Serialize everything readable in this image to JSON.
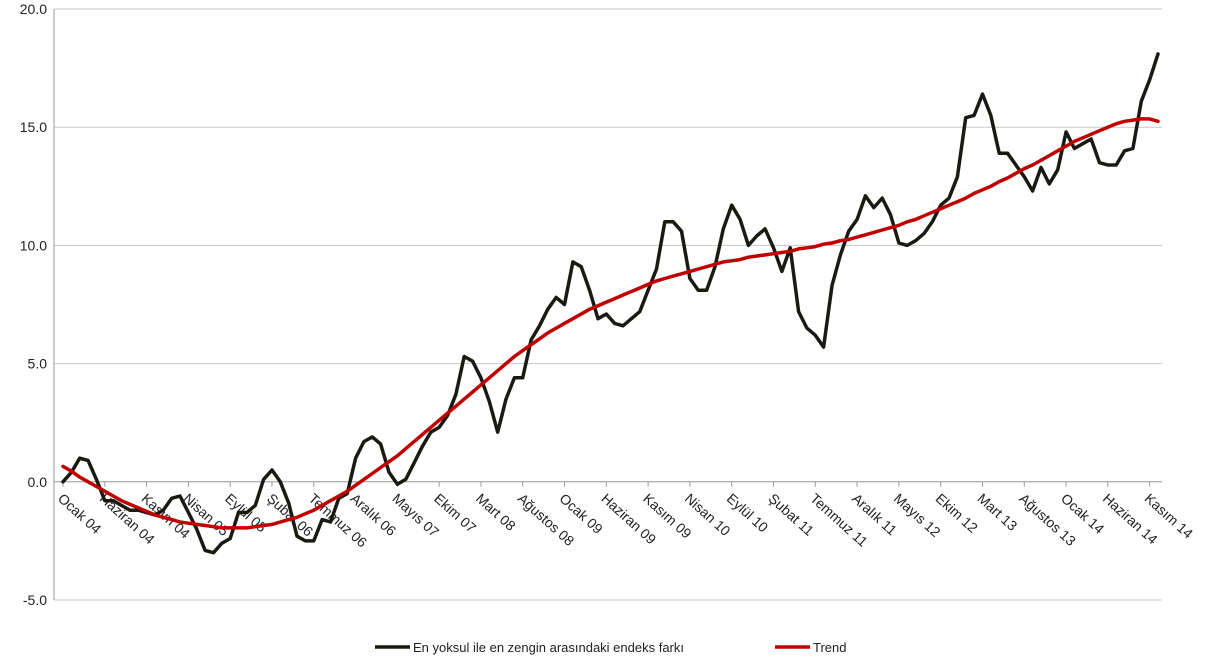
{
  "chart_data": {
    "type": "line",
    "title": "",
    "xlabel": "",
    "ylabel": "",
    "ylim": [
      -5,
      20
    ],
    "yticks": [
      "-5.0",
      "0.0",
      "5.0",
      "10.0",
      "15.0",
      "20.0"
    ],
    "yticks_values": [
      -5,
      0,
      5,
      10,
      15,
      20
    ],
    "grid": "horizontal",
    "legend_position": "bottom-center",
    "x_tick_labels": [
      "Ocak 04",
      "Haziran 04",
      "Kasım 04",
      "Nisan 05",
      "Eylül 05",
      "Şubat 06",
      "Temmuz 06",
      "Aralık 06",
      "Mayıs 07",
      "Ekim 07",
      "Mart 08",
      "Ağustos 08",
      "Ocak 09",
      "Haziran 09",
      "Kasım 09",
      "Nisan 10",
      "Eylül 10",
      "Şubat 11",
      "Temmuz 11",
      "Aralık 11",
      "Mayıs 12",
      "Ekim 12",
      "Mart 13",
      "Ağustos 13",
      "Ocak 14",
      "Haziran 14",
      "Kasım 14"
    ],
    "x_tick_index_step": 5,
    "series": [
      {
        "name": "En yoksul ile en zengin arasındaki endeks farkı",
        "color": "#1a1a12",
        "values": [
          0.0,
          0.4,
          1.0,
          0.9,
          0.1,
          -0.8,
          -0.8,
          -1.0,
          -1.2,
          -1.2,
          -1.3,
          -1.4,
          -1.2,
          -0.7,
          -0.6,
          -1.3,
          -2.0,
          -2.9,
          -3.0,
          -2.6,
          -2.4,
          -1.3,
          -1.3,
          -1.0,
          0.1,
          0.5,
          0.0,
          -0.9,
          -2.3,
          -2.5,
          -2.5,
          -1.6,
          -1.7,
          -0.7,
          -0.5,
          1.0,
          1.7,
          1.9,
          1.6,
          0.4,
          -0.1,
          0.1,
          0.8,
          1.5,
          2.1,
          2.3,
          2.8,
          3.7,
          5.3,
          5.1,
          4.4,
          3.4,
          2.1,
          3.5,
          4.4,
          4.4,
          6.0,
          6.6,
          7.3,
          7.8,
          7.5,
          9.3,
          9.1,
          8.1,
          6.9,
          7.1,
          6.7,
          6.6,
          6.9,
          7.2,
          8.1,
          9.0,
          11.0,
          11.0,
          10.6,
          8.6,
          8.1,
          8.1,
          9.1,
          10.7,
          11.7,
          11.1,
          10.0,
          10.4,
          10.7,
          9.9,
          8.9,
          9.9,
          7.2,
          6.5,
          6.2,
          5.7,
          8.3,
          9.6,
          10.6,
          11.1,
          12.1,
          11.6,
          12.0,
          11.3,
          10.1,
          10.0,
          10.2,
          10.5,
          11.0,
          11.7,
          12.0,
          12.9,
          15.4,
          15.5,
          16.4,
          15.5,
          13.9,
          13.9,
          13.4,
          12.9,
          12.3,
          13.3,
          12.6,
          13.2,
          14.8,
          14.1,
          14.3,
          14.5,
          13.5,
          13.4,
          13.4,
          14.0,
          14.1,
          16.1,
          17.0,
          18.1
        ]
      },
      {
        "name": "Trend",
        "color": "#c00000",
        "values": [
          0.65,
          0.45,
          0.2,
          0.0,
          -0.2,
          -0.4,
          -0.6,
          -0.8,
          -0.95,
          -1.1,
          -1.25,
          -1.4,
          -1.5,
          -1.6,
          -1.7,
          -1.75,
          -1.8,
          -1.85,
          -1.9,
          -1.95,
          -1.95,
          -1.95,
          -1.95,
          -1.9,
          -1.85,
          -1.8,
          -1.7,
          -1.6,
          -1.5,
          -1.35,
          -1.2,
          -1.0,
          -0.8,
          -0.6,
          -0.4,
          -0.15,
          0.1,
          0.35,
          0.6,
          0.85,
          1.1,
          1.4,
          1.7,
          2.0,
          2.3,
          2.6,
          2.9,
          3.2,
          3.5,
          3.8,
          4.1,
          4.4,
          4.7,
          5.0,
          5.3,
          5.55,
          5.8,
          6.05,
          6.3,
          6.5,
          6.7,
          6.9,
          7.1,
          7.3,
          7.45,
          7.6,
          7.75,
          7.9,
          8.05,
          8.2,
          8.35,
          8.5,
          8.6,
          8.7,
          8.8,
          8.9,
          9.0,
          9.1,
          9.2,
          9.3,
          9.35,
          9.4,
          9.5,
          9.55,
          9.6,
          9.65,
          9.7,
          9.75,
          9.85,
          9.9,
          9.95,
          10.05,
          10.1,
          10.2,
          10.25,
          10.35,
          10.45,
          10.55,
          10.65,
          10.75,
          10.85,
          11.0,
          11.1,
          11.25,
          11.4,
          11.55,
          11.7,
          11.85,
          12.0,
          12.2,
          12.35,
          12.5,
          12.7,
          12.85,
          13.05,
          13.25,
          13.4,
          13.6,
          13.8,
          14.0,
          14.2,
          14.4,
          14.55,
          14.7,
          14.85,
          15.0,
          15.15,
          15.25,
          15.3,
          15.35,
          15.35,
          15.25
        ]
      }
    ]
  }
}
